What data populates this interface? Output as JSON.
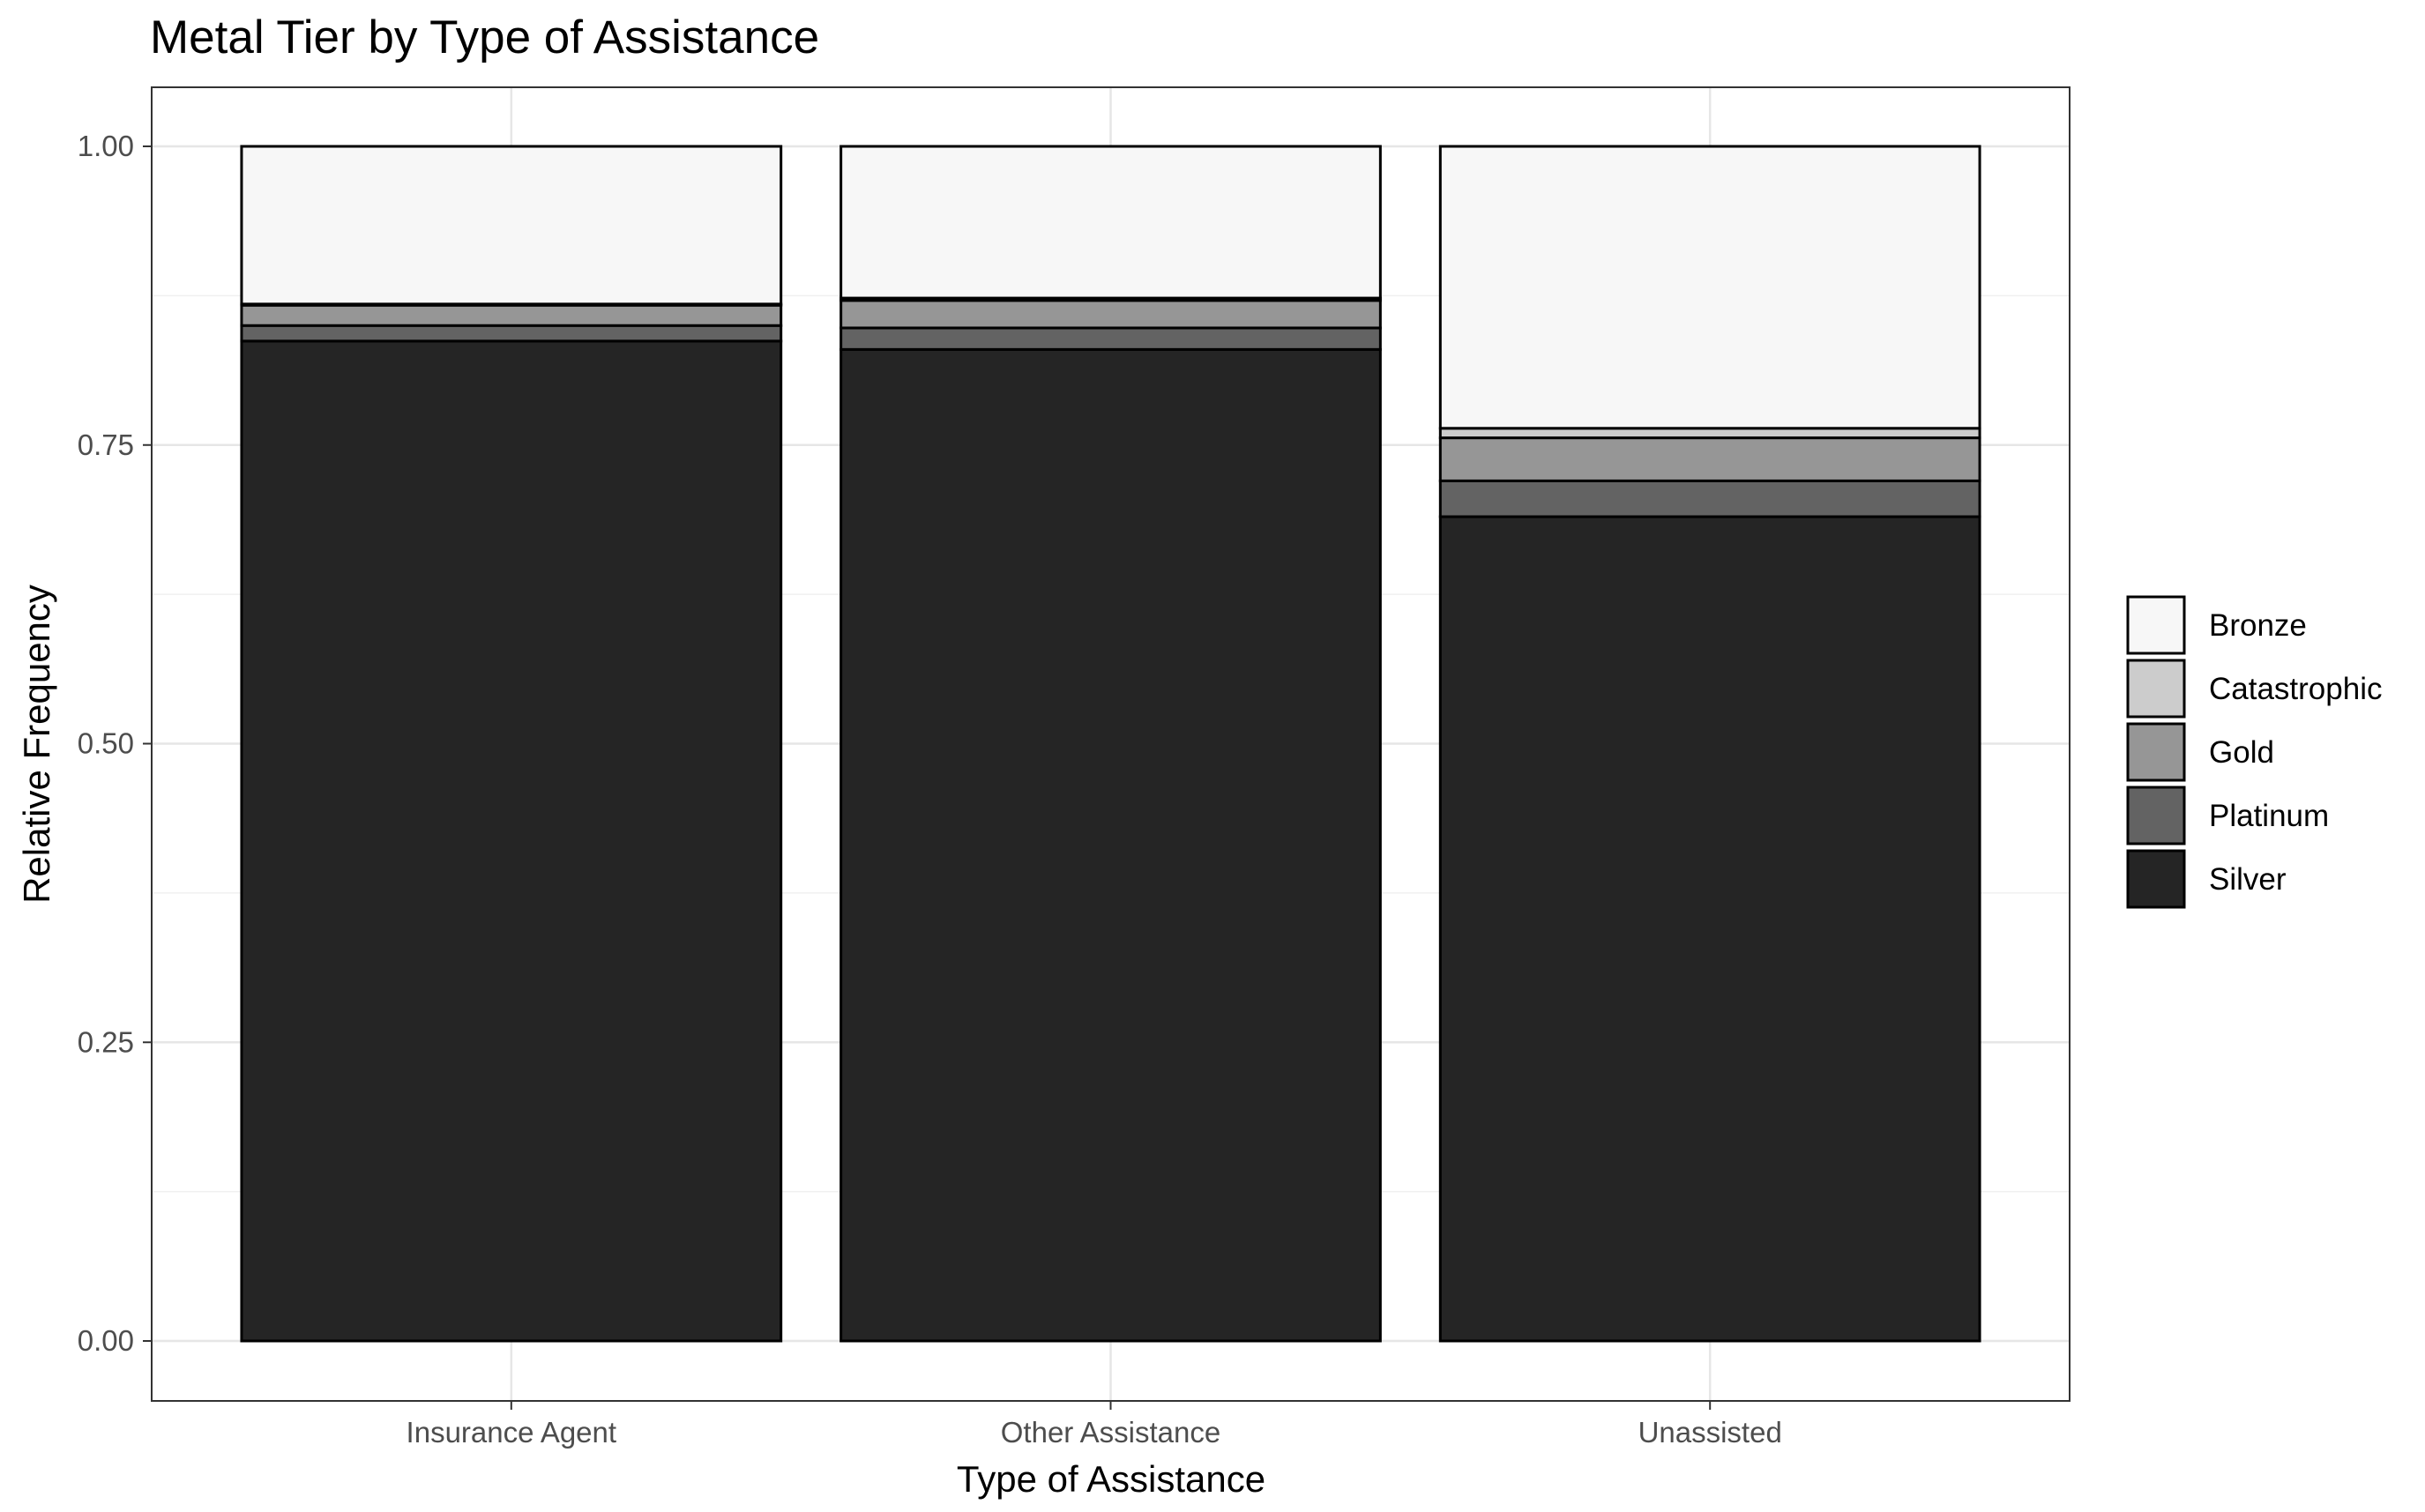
{
  "chart_data": {
    "type": "bar",
    "stacked": true,
    "title": "Metal Tier by Type of Assistance",
    "xlabel": "Type of Assistance",
    "ylabel": "Relative Frequency",
    "categories": [
      "Insurance Agent",
      "Other Assistance",
      "Unassisted"
    ],
    "ylim": [
      0,
      1.05
    ],
    "yticks": [
      0.0,
      0.25,
      0.5,
      0.75,
      1.0
    ],
    "ytick_labels": [
      "0.00",
      "0.25",
      "0.50",
      "0.75",
      "1.00"
    ],
    "grid": true,
    "legend_position": "right",
    "stack_order_bottom_to_top": [
      "Silver",
      "Platinum",
      "Gold",
      "Catastrophic",
      "Bronze"
    ],
    "series": [
      {
        "name": "Bronze",
        "color": "#f7f7f7",
        "values": [
          0.132,
          0.127,
          0.236
        ]
      },
      {
        "name": "Catastrophic",
        "color": "#cccccc",
        "values": [
          0.001,
          0.002,
          0.008
        ]
      },
      {
        "name": "Gold",
        "color": "#969696",
        "values": [
          0.017,
          0.023,
          0.036
        ]
      },
      {
        "name": "Platinum",
        "color": "#636363",
        "values": [
          0.013,
          0.018,
          0.03
        ]
      },
      {
        "name": "Silver",
        "color": "#252525",
        "values": [
          0.837,
          0.83,
          0.69
        ]
      }
    ]
  }
}
